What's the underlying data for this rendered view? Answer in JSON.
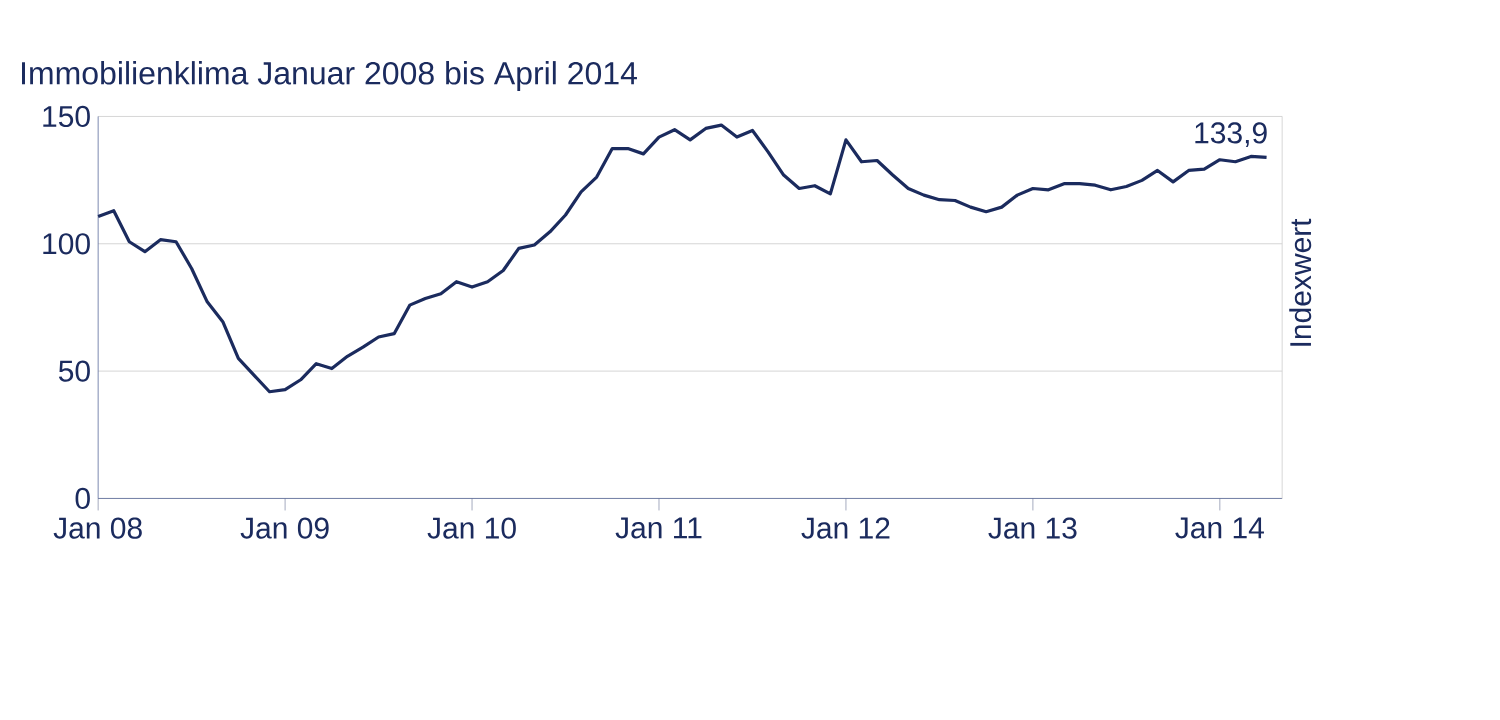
{
  "chart_data": {
    "type": "line",
    "title": "Immobilienklima Januar 2008 bis April 2014",
    "ylabel": "Indexwert",
    "color": "#1b2b5e",
    "grid": "y",
    "x": [
      "2008-01",
      "2008-02",
      "2008-03",
      "2008-04",
      "2008-05",
      "2008-06",
      "2008-07",
      "2008-08",
      "2008-09",
      "2008-10",
      "2008-11",
      "2008-12",
      "2009-01",
      "2009-02",
      "2009-03",
      "2009-04",
      "2009-05",
      "2009-06",
      "2009-07",
      "2009-08",
      "2009-09",
      "2009-10",
      "2009-11",
      "2009-12",
      "2010-01",
      "2010-02",
      "2010-03",
      "2010-04",
      "2010-05",
      "2010-06",
      "2010-07",
      "2010-08",
      "2010-09",
      "2010-10",
      "2010-11",
      "2010-12",
      "2011-01",
      "2011-02",
      "2011-03",
      "2011-04",
      "2011-05",
      "2011-06",
      "2011-07",
      "2011-08",
      "2011-09",
      "2011-10",
      "2011-11",
      "2011-12",
      "2012-01",
      "2012-02",
      "2012-03",
      "2012-04",
      "2012-05",
      "2012-06",
      "2012-07",
      "2012-08",
      "2012-09",
      "2012-10",
      "2012-11",
      "2012-12",
      "2013-01",
      "2013-02",
      "2013-03",
      "2013-04",
      "2013-05",
      "2013-06",
      "2013-07",
      "2013-08",
      "2013-09",
      "2013-10",
      "2013-11",
      "2013-12",
      "2014-01",
      "2014-02",
      "2014-03",
      "2014-04"
    ],
    "values": [
      110.7,
      113,
      100.8,
      96.9,
      101.6,
      100.8,
      90.3,
      77.2,
      69.4,
      55,
      48.4,
      41.9,
      42.7,
      46.6,
      52.9,
      51,
      55.8,
      59.4,
      63.4,
      64.7,
      75.9,
      78.5,
      80.4,
      85.1,
      83,
      85.1,
      89.5,
      98.2,
      99.5,
      104.7,
      111.3,
      120.4,
      126.2,
      137.4,
      137.4,
      135.3,
      141.9,
      144.8,
      140.8,
      145.3,
      146.6,
      141.9,
      144.5,
      136.1,
      127,
      121.7,
      122.8,
      119.6,
      140.8,
      132.2,
      132.7,
      127,
      121.7,
      119.1,
      117.3,
      117,
      114.4,
      112.6,
      114.4,
      119.1,
      121.7,
      121.2,
      123.6,
      123.6,
      123,
      121.2,
      122.5,
      124.9,
      128.8,
      124.3,
      128.8,
      129.3,
      133,
      132.2,
      134.3,
      133.9
    ],
    "xlim": [
      "2008-01",
      "2014-05"
    ],
    "ylim": [
      0,
      150
    ],
    "xticks": [
      {
        "value": "2008-01",
        "label": "Jan 08"
      },
      {
        "value": "2009-01",
        "label": "Jan 09"
      },
      {
        "value": "2010-01",
        "label": "Jan 10"
      },
      {
        "value": "2011-01",
        "label": "Jan 11"
      },
      {
        "value": "2012-01",
        "label": "Jan 12"
      },
      {
        "value": "2013-01",
        "label": "Jan 13"
      },
      {
        "value": "2014-01",
        "label": "Jan 14"
      }
    ],
    "yticks": [
      0,
      50,
      100,
      150
    ],
    "annotations": [
      {
        "text": "133,9",
        "x": "2014-04",
        "y": 133.9
      }
    ]
  }
}
